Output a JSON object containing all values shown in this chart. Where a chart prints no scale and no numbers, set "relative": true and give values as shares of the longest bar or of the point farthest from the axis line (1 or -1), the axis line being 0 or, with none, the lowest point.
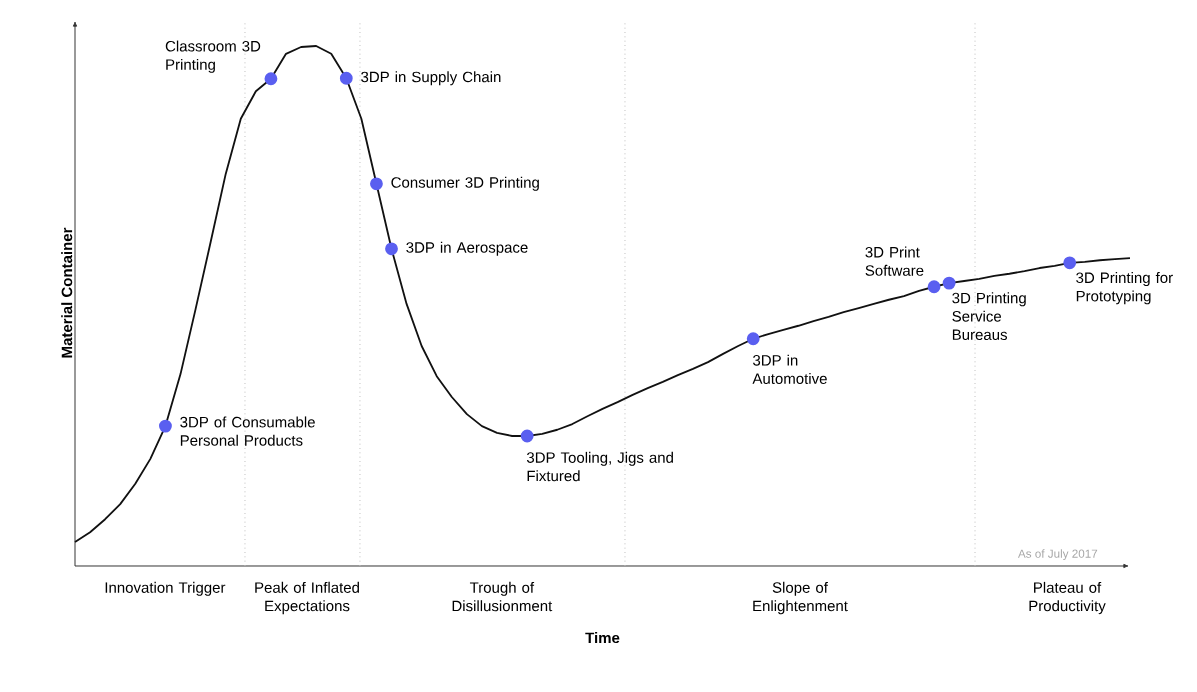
{
  "chart_data": {
    "type": "line",
    "relative": true,
    "xlabel": "Time",
    "ylabel": "Material Container",
    "categories": [
      null,
      null,
      null,
      null,
      null,
      null,
      null,
      null,
      null,
      null,
      null,
      null,
      null,
      null,
      null,
      null,
      null,
      null,
      null,
      null,
      null,
      null,
      null,
      null,
      null,
      null,
      null,
      null,
      null,
      null,
      null,
      null,
      null,
      null,
      null,
      null,
      null,
      null,
      null,
      null,
      null,
      null,
      null,
      null,
      null,
      null,
      null,
      null,
      null,
      null,
      null,
      null,
      null,
      null,
      null,
      null,
      null,
      null,
      null,
      null,
      null,
      null,
      null,
      null,
      null,
      null,
      null,
      null,
      null,
      null,
      null
    ],
    "series": [
      {
        "color": "#111111",
        "values": [
          0.046,
          0.065,
          0.09,
          0.119,
          0.158,
          0.206,
          0.269,
          0.369,
          0.494,
          0.623,
          0.754,
          0.86,
          0.913,
          0.937,
          0.985,
          0.998,
          1,
          0.985,
          0.938,
          0.86,
          0.735,
          0.61,
          0.504,
          0.423,
          0.365,
          0.325,
          0.292,
          0.269,
          0.256,
          0.25,
          0.25,
          0.254,
          0.262,
          0.273,
          0.288,
          0.302,
          0.315,
          0.329,
          0.342,
          0.354,
          0.367,
          0.379,
          0.392,
          0.408,
          0.423,
          0.437,
          0.446,
          0.454,
          0.462,
          0.471,
          0.479,
          0.488,
          0.496,
          0.504,
          0.512,
          0.519,
          0.529,
          0.537,
          0.544,
          0.548,
          0.552,
          0.558,
          0.562,
          0.567,
          0.573,
          0.577,
          0.583,
          0.585,
          0.588,
          0.59,
          0.592
        ],
        "colors": [
          null,
          null,
          null,
          null,
          null,
          null,
          "#5a5ff0",
          null,
          null,
          null,
          null,
          null,
          null,
          "#5a5ff0",
          null,
          null,
          null,
          null,
          "#5a5ff0",
          null,
          "#5a5ff0",
          "#5a5ff0",
          null,
          null,
          null,
          null,
          null,
          null,
          null,
          null,
          "#5a5ff0",
          null,
          null,
          null,
          null,
          null,
          null,
          null,
          null,
          null,
          null,
          null,
          null,
          null,
          null,
          "#5a5ff0",
          null,
          null,
          null,
          null,
          null,
          null,
          null,
          null,
          null,
          null,
          null,
          "#5a5ff0",
          "#5a5ff0",
          null,
          null,
          null,
          null,
          null,
          null,
          null,
          "#5a5ff0",
          null,
          null,
          null,
          null
        ]
      }
    ],
    "annotations": [
      "3DP of Consumable Personal Products",
      "Classroom 3D Printing",
      "3DP in Supply Chain",
      "Consumer 3D Printing",
      "3DP in Aerospace",
      "3DP Tooling, Jigs and Fixtured",
      "3DP in Automotive",
      "3D Print Software",
      "3D Printing Service Bureaus",
      "3D Printing for Prototyping",
      "Innovation Trigger",
      "Peak of Inflated Expectations",
      "Trough of Disillusionment",
      "Slope of Enlightenment",
      "Plateau of Productivity",
      "As of July 2017"
    ]
  }
}
